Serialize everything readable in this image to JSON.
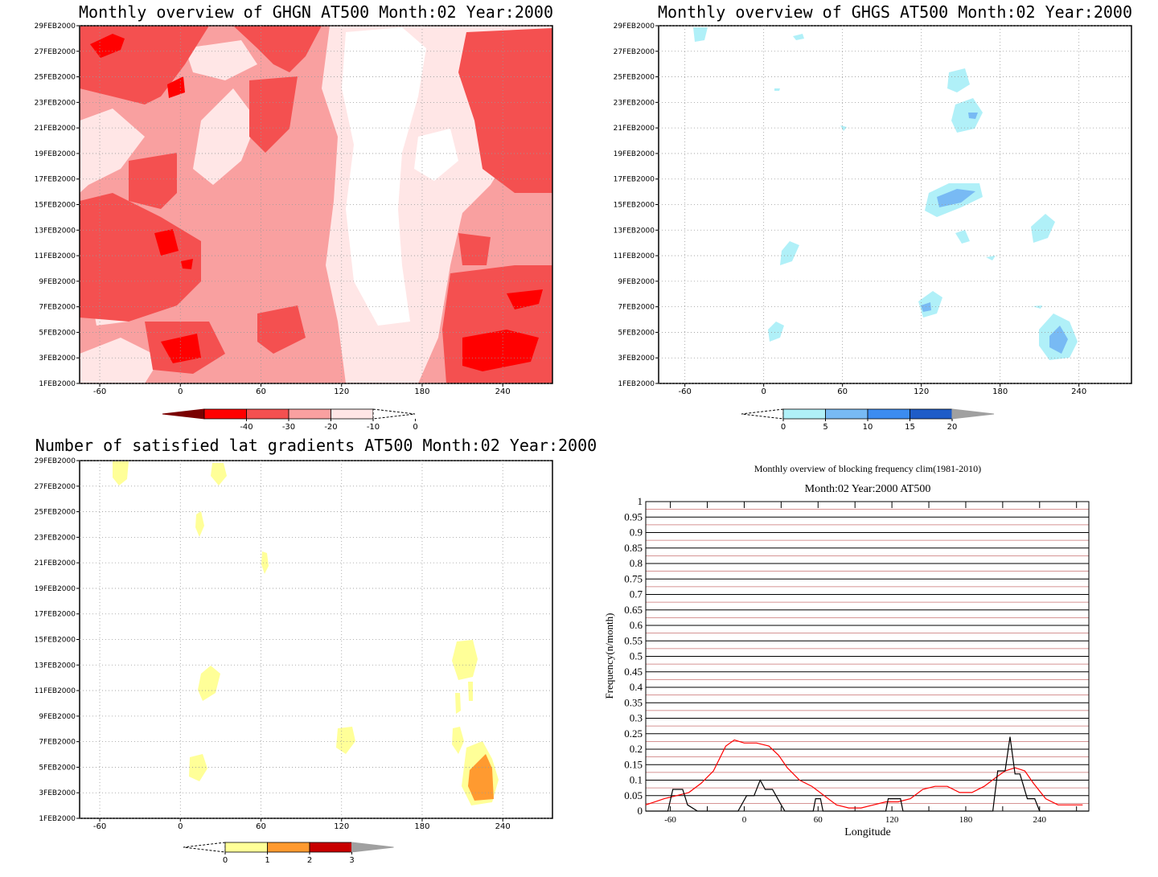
{
  "colors": {
    "north": [
      "#7a0000",
      "#ff0000",
      "#f45050",
      "#f9a0a0",
      "#ffe6e6"
    ],
    "south": [
      "#b0f0f8",
      "#78baf4",
      "#3c8cf0",
      "#1e5cc8",
      "#a0a0a0"
    ],
    "grad": [
      "#ffff98",
      "#ff9a30",
      "#c80000",
      "#a0a0a0"
    ],
    "freq_clim": "#ff0000",
    "freq_year": "#000000"
  },
  "chart_data": [
    {
      "id": "ghgn",
      "type": "heatmap",
      "title": "Monthly overview of GHGN AT500 Month:02 Year:2000",
      "y_ticks": [
        "29FEB2000",
        "27FEB2000",
        "25FEB2000",
        "23FEB2000",
        "21FEB2000",
        "19FEB2000",
        "17FEB2000",
        "15FEB2000",
        "13FEB2000",
        "11FEB2000",
        "9FEB2000",
        "7FEB2000",
        "5FEB2000",
        "3FEB2000",
        "1FEB2000"
      ],
      "x_ticks": [
        "-60",
        "0",
        "60",
        "120",
        "180",
        "240"
      ],
      "xlim": [
        -75,
        277
      ],
      "ylim": [
        1,
        29
      ],
      "colorbar": {
        "labels": [
          "-40",
          "-30",
          "-20",
          "-10",
          "0"
        ]
      }
    },
    {
      "id": "ghgs",
      "type": "heatmap",
      "title": "Monthly overview of GHGS AT500 Month:02 Year:2000",
      "y_ticks": [
        "29FEB2000",
        "27FEB2000",
        "25FEB2000",
        "23FEB2000",
        "21FEB2000",
        "19FEB2000",
        "17FEB2000",
        "15FEB2000",
        "13FEB2000",
        "11FEB2000",
        "9FEB2000",
        "7FEB2000",
        "5FEB2000",
        "3FEB2000",
        "1FEB2000"
      ],
      "x_ticks": [
        "-60",
        "0",
        "60",
        "120",
        "180",
        "240"
      ],
      "xlim": [
        -80,
        280
      ],
      "ylim": [
        1,
        29
      ],
      "colorbar": {
        "labels": [
          "0",
          "5",
          "10",
          "15",
          "20"
        ]
      }
    },
    {
      "id": "grad",
      "type": "heatmap",
      "title": "Number of satisfied lat gradients AT500 Month:02 Year:2000",
      "y_ticks": [
        "29FEB2000",
        "27FEB2000",
        "25FEB2000",
        "23FEB2000",
        "21FEB2000",
        "19FEB2000",
        "17FEB2000",
        "15FEB2000",
        "13FEB2000",
        "11FEB2000",
        "9FEB2000",
        "7FEB2000",
        "5FEB2000",
        "3FEB2000",
        "1FEB2000"
      ],
      "x_ticks": [
        "-60",
        "0",
        "60",
        "120",
        "180",
        "240"
      ],
      "xlim": [
        -75,
        277
      ],
      "ylim": [
        1,
        29
      ],
      "colorbar": {
        "labels": [
          "0",
          "1",
          "2",
          "3"
        ]
      }
    },
    {
      "id": "freq",
      "type": "line",
      "title": "Monthly overview of blocking frequency clim(1981-2010)",
      "subtitle": "Month:02 Year:2000  AT500",
      "xlabel": "Longitude",
      "ylabel": "Frequency(n/month)",
      "xlim": [
        -80,
        280
      ],
      "ylim": [
        0,
        1
      ],
      "y_ticks": [
        "0",
        "0.05",
        "0.1",
        "0.15",
        "0.2",
        "0.25",
        "0.3",
        "0.35",
        "0.4",
        "0.45",
        "0.5",
        "0.55",
        "0.6",
        "0.65",
        "0.7",
        "0.75",
        "0.8",
        "0.85",
        "0.9",
        "0.95",
        "1"
      ],
      "x_ticks": [
        "-60",
        "0",
        "60",
        "120",
        "180",
        "240"
      ],
      "series": [
        {
          "values_x": [
            -80,
            -65,
            -55,
            -45,
            -35,
            -25,
            -15,
            -8,
            0,
            10,
            20,
            28,
            35,
            45,
            55,
            65,
            75,
            85,
            95,
            105,
            115,
            125,
            135,
            145,
            155,
            165,
            175,
            185,
            195,
            205,
            212,
            220,
            228,
            235,
            245,
            255,
            265,
            275
          ],
          "values_y": [
            0.02,
            0.04,
            0.05,
            0.06,
            0.09,
            0.13,
            0.21,
            0.23,
            0.22,
            0.22,
            0.21,
            0.18,
            0.14,
            0.1,
            0.08,
            0.05,
            0.02,
            0.01,
            0.01,
            0.02,
            0.03,
            0.03,
            0.04,
            0.07,
            0.08,
            0.08,
            0.06,
            0.06,
            0.08,
            0.11,
            0.13,
            0.14,
            0.13,
            0.09,
            0.04,
            0.02,
            0.02,
            0.02
          ]
        },
        {
          "values_x": [
            -80,
            -62,
            -58,
            -50,
            -46,
            -38,
            -5,
            2,
            8,
            13,
            17,
            23,
            30,
            33,
            56,
            58,
            62,
            64,
            115,
            117,
            127,
            129,
            202,
            206,
            212,
            216,
            220,
            224,
            230,
            236,
            240,
            250,
            280
          ],
          "values_y": [
            0,
            0,
            0.07,
            0.07,
            0.02,
            0,
            0,
            0.05,
            0.05,
            0.1,
            0.07,
            0.07,
            0.02,
            0,
            0,
            0.04,
            0.04,
            0,
            0,
            0.04,
            0.04,
            0,
            0,
            0.13,
            0.13,
            0.24,
            0.12,
            0.12,
            0.04,
            0.04,
            0,
            0,
            0
          ]
        }
      ]
    }
  ]
}
